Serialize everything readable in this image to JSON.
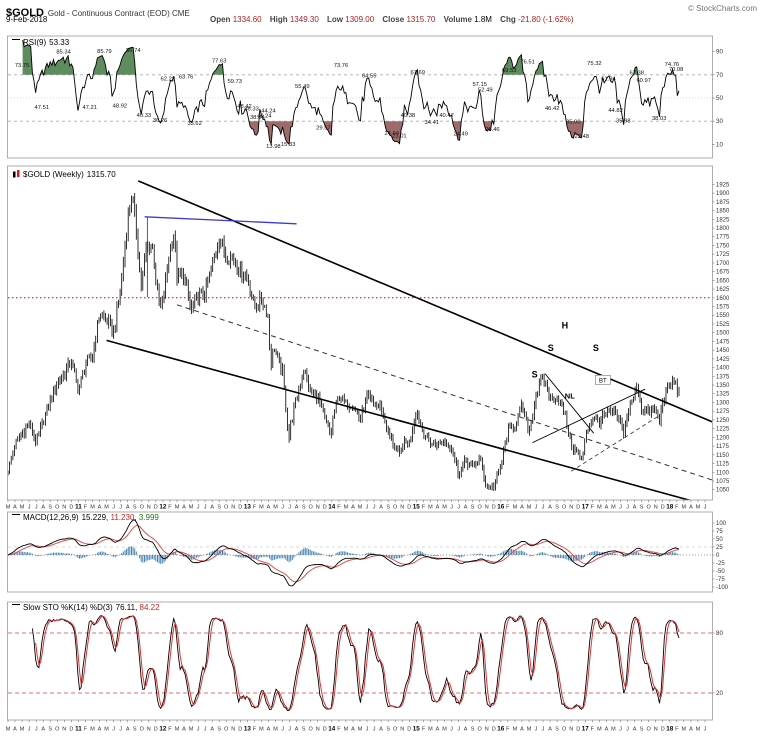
{
  "header": {
    "symbol": "$GOLD",
    "title": "Gold - Continuous Contract (EOD) CME",
    "date": "9-Feb-2018",
    "copyright": "© StockCharts.com",
    "quote": {
      "open": {
        "label": "Open",
        "value": "1334.60"
      },
      "high": {
        "label": "High",
        "value": "1349.30"
      },
      "low": {
        "label": "Low",
        "value": "1309.00"
      },
      "close": {
        "label": "Close",
        "value": "1315.70"
      },
      "volume": {
        "label": "Volume",
        "value": "1.8M"
      },
      "chg": {
        "label": "Chg",
        "value": "-21.80 (-1.62%)"
      }
    }
  },
  "chart_data": [
    {
      "id": "rsi",
      "type": "line",
      "indicator": "RSI",
      "period": 9,
      "title": "RSI(9)",
      "current": "53.33",
      "axis": {
        "min": 0,
        "max": 100,
        "ticks": [
          90,
          70,
          50,
          30,
          10
        ],
        "overbought": 70,
        "oversold": 30,
        "midline": 50
      },
      "colors": {
        "line": "#000000",
        "overbought_fill": "#5e8c5e",
        "oversold_fill": "#9e6b6b",
        "grid": "#aaaaaa"
      },
      "peak_labels": [
        [
          2.0,
          73.75
        ],
        [
          4.8,
          47.51
        ],
        [
          7.9,
          85.34
        ],
        [
          11.6,
          47.21
        ],
        [
          13.7,
          85.79
        ],
        [
          15.9,
          48.92
        ],
        [
          17.8,
          86.74
        ],
        [
          19.3,
          40.33
        ],
        [
          21.6,
          36.26
        ],
        [
          22.7,
          62.22
        ],
        [
          25.3,
          63.76
        ],
        [
          26.5,
          33.62
        ],
        [
          30.0,
          77.63
        ],
        [
          32.2,
          59.73
        ],
        [
          33.6,
          48.42
        ],
        [
          34.6,
          46.33
        ],
        [
          35.4,
          38.84
        ],
        [
          36.4,
          40.24
        ],
        [
          37.0,
          44.24
        ],
        [
          37.7,
          13.98
        ],
        [
          39.8,
          15.33
        ],
        [
          41.8,
          55.49
        ],
        [
          44.8,
          29.57
        ],
        [
          47.3,
          73.76
        ],
        [
          51.3,
          64.55
        ],
        [
          54.5,
          24.94
        ],
        [
          55.6,
          23.01
        ],
        [
          56.8,
          40.38
        ],
        [
          58.2,
          67.69
        ],
        [
          60.2,
          34.41
        ],
        [
          62.3,
          40.47
        ],
        [
          64.3,
          24.49
        ],
        [
          67.0,
          57.15
        ],
        [
          67.8,
          52.49
        ],
        [
          68.8,
          28.46
        ],
        [
          71.2,
          69.53
        ],
        [
          73.8,
          76.51
        ],
        [
          77.3,
          46.42
        ],
        [
          80.3,
          35.0
        ],
        [
          81.5,
          22.48
        ],
        [
          83.3,
          75.32
        ],
        [
          85.3,
          61.94
        ],
        [
          86.3,
          44.82
        ],
        [
          87.4,
          35.98
        ],
        [
          89.3,
          67.38
        ],
        [
          90.3,
          60.97
        ],
        [
          92.5,
          38.03
        ],
        [
          94.3,
          74.76
        ],
        [
          94.9,
          70.08
        ]
      ]
    },
    {
      "id": "price",
      "type": "ohlc",
      "title": "$GOLD (Weekly)",
      "current": "1315.70",
      "timeline": {
        "start_year": 2010,
        "start_month_num": 3,
        "month_letters": "JFMAMJJASOND",
        "axis_months": 100,
        "data_end_month": 95.5,
        "bars": "weekly"
      },
      "axis": {
        "min": 1050,
        "max": 1925,
        "tick_step": 25
      },
      "colors": {
        "bars": "#000000",
        "channel": "#000000",
        "dashed": "#333333",
        "blue": "#3b3bd1",
        "red_dotted": "#cc0000"
      },
      "anchors": [
        [
          0,
          1105
        ],
        [
          1,
          1180
        ],
        [
          2,
          1212
        ],
        [
          3,
          1240
        ],
        [
          4,
          1185
        ],
        [
          5,
          1246
        ],
        [
          6,
          1305
        ],
        [
          7,
          1357
        ],
        [
          8,
          1383
        ],
        [
          9,
          1420
        ],
        [
          10,
          1333
        ],
        [
          11,
          1410
        ],
        [
          12,
          1432
        ],
        [
          13,
          1556
        ],
        [
          14,
          1536
        ],
        [
          15,
          1500
        ],
        [
          16,
          1628
        ],
        [
          17,
          1826
        ],
        [
          17.6,
          1898
        ],
        [
          18.3,
          1782
        ],
        [
          18.9,
          1625
        ],
        [
          19.6,
          1742
        ],
        [
          20.5,
          1752
        ],
        [
          21.3,
          1598
        ],
        [
          21.8,
          1566
        ],
        [
          22.5,
          1664
        ],
        [
          23,
          1740
        ],
        [
          23.6,
          1786
        ],
        [
          24,
          1662
        ],
        [
          25,
          1664
        ],
        [
          26,
          1562
        ],
        [
          27,
          1604
        ],
        [
          28,
          1614
        ],
        [
          29,
          1692
        ],
        [
          30,
          1771
        ],
        [
          31,
          1719
        ],
        [
          32,
          1714
        ],
        [
          33,
          1676
        ],
        [
          34,
          1660
        ],
        [
          35,
          1572
        ],
        [
          36,
          1596
        ],
        [
          36.9,
          1555
        ],
        [
          37.3,
          1405
        ],
        [
          37.8,
          1462
        ],
        [
          38.4,
          1415
        ],
        [
          39,
          1388
        ],
        [
          39.9,
          1190
        ],
        [
          40,
          1224
        ],
        [
          41,
          1312
        ],
        [
          42,
          1396
        ],
        [
          43,
          1327
        ],
        [
          44,
          1316
        ],
        [
          45,
          1252
        ],
        [
          45.9,
          1202
        ],
        [
          46,
          1244
        ],
        [
          47,
          1321
        ],
        [
          48,
          1294
        ],
        [
          49,
          1296
        ],
        [
          50,
          1250
        ],
        [
          51,
          1315
        ],
        [
          52,
          1294
        ],
        [
          53,
          1287
        ],
        [
          54,
          1211
        ],
        [
          55,
          1172
        ],
        [
          55.7,
          1142
        ],
        [
          56,
          1183
        ],
        [
          57,
          1184
        ],
        [
          58,
          1279
        ],
        [
          59,
          1213
        ],
        [
          60,
          1184
        ],
        [
          61,
          1180
        ],
        [
          62,
          1190
        ],
        [
          63,
          1172
        ],
        [
          64,
          1095
        ],
        [
          65,
          1133
        ],
        [
          66,
          1114
        ],
        [
          67,
          1141
        ],
        [
          68,
          1057
        ],
        [
          69,
          1060
        ],
        [
          70,
          1116
        ],
        [
          71,
          1220
        ],
        [
          72,
          1234
        ],
        [
          73,
          1290
        ],
        [
          74,
          1214
        ],
        [
          75,
          1322
        ],
        [
          75.8,
          1367
        ],
        [
          76.5,
          1349
        ],
        [
          77,
          1308
        ],
        [
          78,
          1317
        ],
        [
          79,
          1273
        ],
        [
          80,
          1178
        ],
        [
          81,
          1152
        ],
        [
          81.6,
          1128
        ],
        [
          82,
          1211
        ],
        [
          83,
          1255
        ],
        [
          84,
          1247
        ],
        [
          85,
          1266
        ],
        [
          86,
          1272
        ],
        [
          87,
          1241
        ],
        [
          87.4,
          1210
        ],
        [
          88,
          1268
        ],
        [
          89,
          1322
        ],
        [
          89.3,
          1355
        ],
        [
          90,
          1282
        ],
        [
          91,
          1272
        ],
        [
          92,
          1280
        ],
        [
          92.5,
          1240
        ],
        [
          93,
          1306
        ],
        [
          94,
          1349
        ],
        [
          94.6,
          1362
        ],
        [
          95.5,
          1316
        ]
      ],
      "overlays": [
        {
          "name": "upper-channel-line",
          "points": [
            [
              18.5,
              1935
            ],
            [
              100,
              1245
            ]
          ],
          "color": "#000000",
          "width": 1.6
        },
        {
          "name": "lower-channel-line",
          "points": [
            [
              14.0,
              1478
            ],
            [
              100,
              1002
            ]
          ],
          "color": "#000000",
          "width": 1.6
        },
        {
          "name": "mid-channel-dashed-line",
          "points": [
            [
              24.0,
              1580
            ],
            [
              100,
              1078
            ]
          ],
          "color": "#333333",
          "width": 1,
          "dash": "5,4"
        },
        {
          "name": "rising-support-dashed",
          "points": [
            [
              80.0,
              1103
            ],
            [
              92.5,
              1262
            ]
          ],
          "color": "#444444",
          "width": 0.9,
          "dash": "4,3"
        },
        {
          "name": "neckline-line",
          "points": [
            [
              74.5,
              1185
            ],
            [
              90.5,
              1338
            ]
          ],
          "color": "#000000",
          "width": 0.9
        },
        {
          "name": "descending-triangle-line",
          "points": [
            [
              76.3,
              1382
            ],
            [
              83.2,
              1212
            ]
          ],
          "color": "#000000",
          "width": 0.9
        },
        {
          "name": "blue-resistance-line",
          "points": [
            [
              19.4,
              1832
            ],
            [
              41.0,
              1812
            ]
          ],
          "color": "#3b3bd1",
          "width": 1.3
        },
        {
          "name": "blue-vertical-line",
          "points": [
            [
              19.8,
              1832
            ],
            [
              19.8,
              1602
            ]
          ],
          "color": "#3b3bd1",
          "width": 0.9
        },
        {
          "name": "red-dotted-support-1600",
          "points": [
            [
              0,
              1600
            ],
            [
              100,
              1600
            ]
          ],
          "color": "#cc0000",
          "width": 1,
          "dash": "1.5,2.5"
        }
      ],
      "annotations": [
        {
          "text": "S",
          "m": 74.8,
          "price": 1372
        },
        {
          "text": "S",
          "m": 77.1,
          "price": 1448
        },
        {
          "text": "H",
          "m": 79.1,
          "price": 1512
        },
        {
          "text": "S",
          "m": 83.5,
          "price": 1448
        },
        {
          "text": "NL",
          "m": 79.8,
          "price": 1312
        },
        {
          "text": "BT",
          "m": 84.5,
          "price": 1362,
          "boxed": true
        }
      ]
    },
    {
      "id": "macd",
      "type": "macd",
      "title": "MACD(12,26,9)",
      "params": [
        12,
        26,
        9
      ],
      "values": [
        "15.229",
        "11.230",
        "3.999"
      ],
      "axis": {
        "min": -100,
        "max": 100,
        "tick_step": 25
      },
      "colors": {
        "macd": "#000000",
        "signal": "#e05050",
        "hist": "#4682b4"
      }
    },
    {
      "id": "sto",
      "type": "stochastic",
      "title": "Slow STO %K(14) %D(3)",
      "params": [
        14,
        3
      ],
      "values": [
        "76.11",
        "84.22"
      ],
      "axis": {
        "min": 0,
        "max": 100,
        "ticks": [
          80,
          20
        ]
      },
      "colors": {
        "k": "#000000",
        "d": "#dd3333",
        "band": "#cc4444"
      }
    }
  ]
}
